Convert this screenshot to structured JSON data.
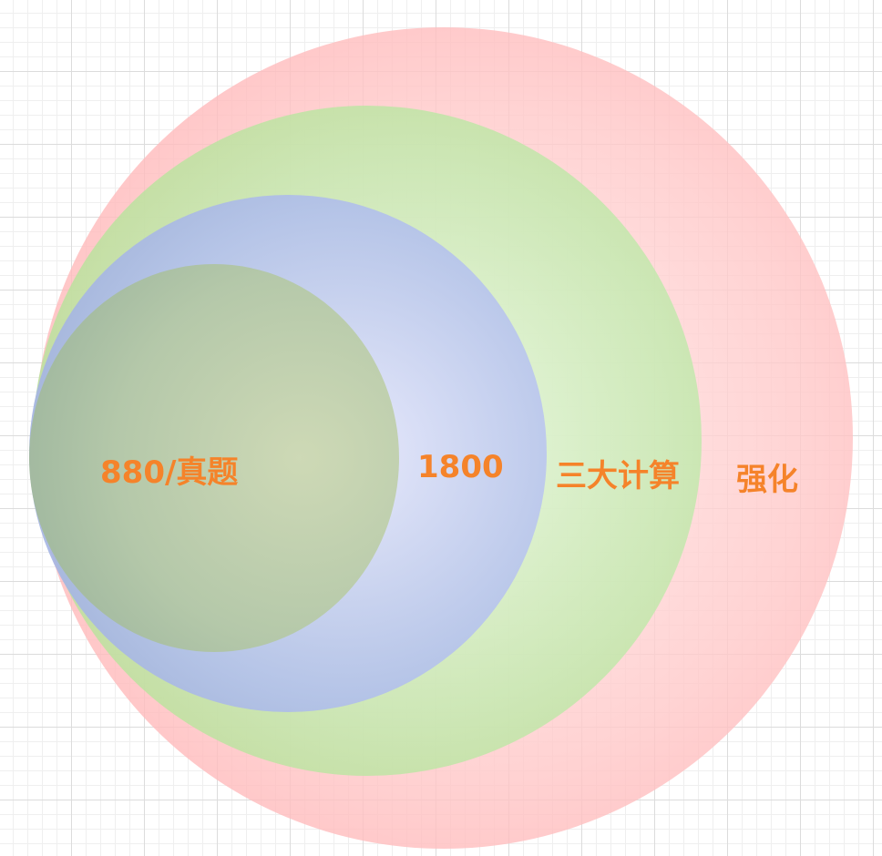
{
  "diagram": {
    "type": "nested-circles",
    "levels": [
      {
        "key": "outer",
        "label": "强化",
        "color": "#ffb3b5"
      },
      {
        "key": "middle",
        "label": "三大计算",
        "color": "#b7df9a"
      },
      {
        "key": "inner",
        "label": "1800",
        "color": "#a6b6e6"
      },
      {
        "key": "core",
        "label": "880/真题",
        "color": "#a9c0a0"
      }
    ],
    "label_color": "#f5832a"
  }
}
